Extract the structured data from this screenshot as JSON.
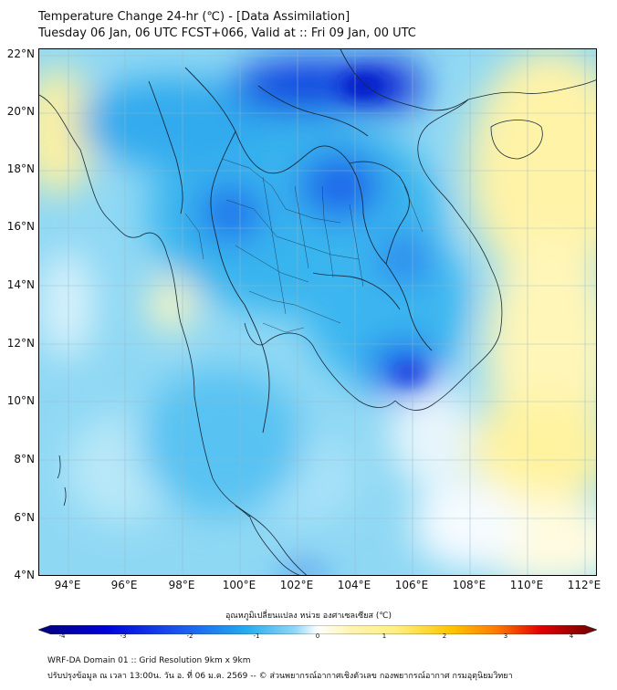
{
  "title": {
    "line1": "Temperature Change 24-hr (℃) - [Data Assimilation]",
    "line2": "Tuesday 06 Jan, 06 UTC FCST+066, Valid at :: Fri 09 Jan, 00 UTC"
  },
  "map": {
    "lat_range": [
      4,
      22.2
    ],
    "lon_range": [
      93,
      112.4
    ],
    "lat_ticks": [
      "22°N",
      "20°N",
      "18°N",
      "16°N",
      "14°N",
      "12°N",
      "10°N",
      "8°N",
      "6°N",
      "4°N"
    ],
    "lon_ticks": [
      "94°E",
      "96°E",
      "98°E",
      "100°E",
      "102°E",
      "104°E",
      "106°E",
      "108°E",
      "110°E",
      "112°E"
    ],
    "grid": true
  },
  "colorbar": {
    "label": "อุณหภูมิเปลี่ยนแปลง หน่วย องศาเซลเซียส (℃)",
    "ticks": [
      "-4",
      "-3",
      "-2",
      "-1",
      "0",
      "1",
      "2",
      "3",
      "4"
    ],
    "range": [
      -4,
      4
    ],
    "colors": [
      "#00007a",
      "#0000d8",
      "#1a55ee",
      "#22aaf0",
      "#8fd8f8",
      "#ffffff",
      "#fff080",
      "#ffc400",
      "#ff7a00",
      "#e00000",
      "#6a0000"
    ]
  },
  "footer": {
    "line1": "WRF-DA Domain 01 :: Grid Resolution 9km x 9km",
    "line2": "ปรับปรุงข้อมูล ณ เวลา 13:00น. วัน อ. ที่ 06 ม.ค. 2569 -- © ส่วนพยากรณ์อากาศเชิงตัวเลข กองพยากรณ์อากาศ กรมอุตุนิยมวิทยา"
  }
}
